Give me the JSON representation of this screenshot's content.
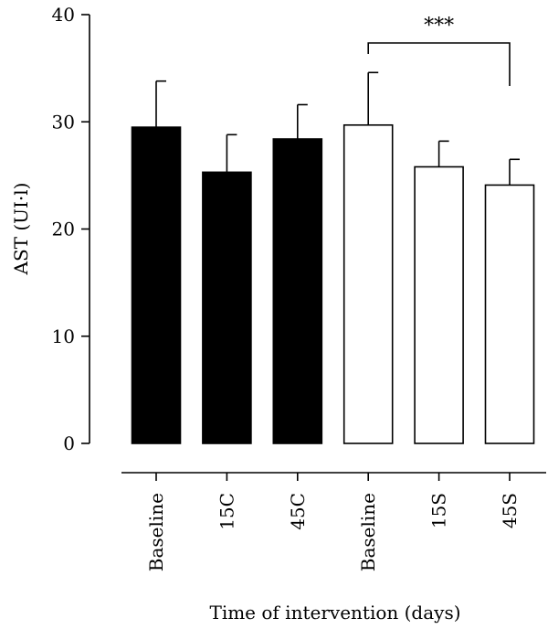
{
  "chart_data": {
    "type": "bar",
    "title": "",
    "xlabel": "Time of intervention (days)",
    "ylabel": "AST (UI·l)",
    "ylim": [
      0,
      40
    ],
    "yticks": [
      0,
      10,
      20,
      30,
      40
    ],
    "categories": [
      "Baseline",
      "15C",
      "45C",
      "Baseline",
      "15S",
      "45S"
    ],
    "values": [
      29.5,
      25.3,
      28.4,
      29.7,
      25.8,
      24.1
    ],
    "errors": [
      4.3,
      3.5,
      3.2,
      4.9,
      2.4,
      2.4
    ],
    "fills": [
      "#000000",
      "#000000",
      "#000000",
      "#ffffff",
      "#ffffff",
      "#ffffff"
    ],
    "significance": {
      "from_index": 3,
      "to_index": 5,
      "label": "***"
    },
    "grid": false,
    "legend": "none"
  }
}
